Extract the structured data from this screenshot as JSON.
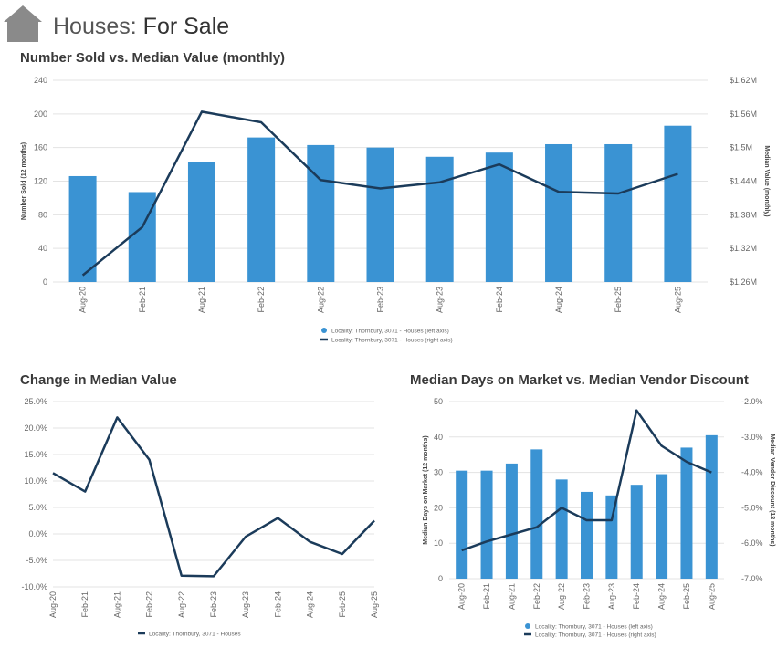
{
  "header": {
    "title_prefix": "Houses:",
    "title_main": "For Sale",
    "icon": "house-icon"
  },
  "colors": {
    "bar": "#3a93d3",
    "line": "#1b3b5a",
    "grid": "#e3e3e3"
  },
  "chart_data": [
    {
      "type": "bar",
      "title": "Number Sold vs. Median Value (monthly)",
      "categories": [
        "Aug-20",
        "Feb-21",
        "Aug-21",
        "Feb-22",
        "Aug-22",
        "Feb-23",
        "Aug-23",
        "Feb-24",
        "Aug-24",
        "Feb-25",
        "Aug-25"
      ],
      "ylabel": "Number Sold (12 months)",
      "y2label": "Median Value (monthly)",
      "ylim": [
        0,
        240
      ],
      "yticks": [
        "0",
        "40",
        "80",
        "120",
        "160",
        "200",
        "240"
      ],
      "y2lim": [
        1.26,
        1.62
      ],
      "y2ticks": [
        "$1.26M",
        "$1.32M",
        "$1.38M",
        "$1.44M",
        "$1.5M",
        "$1.56M",
        "$1.62M"
      ],
      "series": [
        {
          "name": "Locality: Thornbury, 3071 - Houses (left axis)",
          "type": "bar",
          "axis": "left",
          "values": [
            126,
            107,
            143,
            172,
            163,
            160,
            149,
            154,
            164,
            164,
            186
          ]
        },
        {
          "name": "Locality: Thornbury, 3071 - Houses (right axis)",
          "type": "line",
          "axis": "right",
          "values": [
            1.272,
            1.358,
            1.564,
            1.545,
            1.442,
            1.427,
            1.438,
            1.47,
            1.421,
            1.418,
            1.453
          ]
        }
      ],
      "grid": true,
      "legend": "bottom"
    },
    {
      "type": "line",
      "title": "Change in Median Value",
      "categories": [
        "Aug-20",
        "Feb-21",
        "Aug-21",
        "Feb-22",
        "Aug-22",
        "Feb-23",
        "Aug-23",
        "Feb-24",
        "Aug-24",
        "Feb-25",
        "Aug-25"
      ],
      "ylim": [
        -10,
        25
      ],
      "yticks": [
        "-10.0%",
        "-5.0%",
        "0.0%",
        "5.0%",
        "10.0%",
        "15.0%",
        "20.0%",
        "25.0%"
      ],
      "series": [
        {
          "name": "Locality: Thornbury, 3071 - Houses",
          "values": [
            11.5,
            8.0,
            22.0,
            14.0,
            -7.9,
            -8.0,
            -0.5,
            3.0,
            -1.5,
            -3.8,
            2.5
          ]
        }
      ],
      "grid": true,
      "legend": "bottom"
    },
    {
      "type": "bar",
      "title": "Median Days on Market vs. Median Vendor Discount",
      "categories": [
        "Aug-20",
        "Feb-21",
        "Aug-21",
        "Feb-22",
        "Aug-22",
        "Feb-23",
        "Aug-23",
        "Feb-24",
        "Aug-24",
        "Feb-25",
        "Aug-25"
      ],
      "ylabel": "Median Days on Market (12 months)",
      "y2label": "Median Vendor Discount (12 months)",
      "ylim": [
        0,
        50
      ],
      "yticks": [
        "0",
        "10",
        "20",
        "30",
        "40",
        "50"
      ],
      "y2lim": [
        -7.0,
        -2.0
      ],
      "y2ticks": [
        "-7.0%",
        "-6.0%",
        "-5.0%",
        "-4.0%",
        "-3.0%",
        "-2.0%"
      ],
      "series": [
        {
          "name": "Locality: Thornbury, 3071 - Houses (left axis)",
          "type": "bar",
          "axis": "left",
          "values": [
            30.5,
            30.5,
            32.5,
            36.5,
            28,
            24.5,
            23.5,
            26.5,
            29.5,
            37,
            40.5
          ]
        },
        {
          "name": "Locality: Thornbury, 3071 - Houses (right axis)",
          "type": "line",
          "axis": "right",
          "values": [
            -6.2,
            -5.95,
            -5.75,
            -5.55,
            -5.0,
            -5.35,
            -5.35,
            -2.25,
            -3.25,
            -3.7,
            -4.0
          ]
        }
      ],
      "grid": true,
      "legend": "bottom"
    }
  ]
}
